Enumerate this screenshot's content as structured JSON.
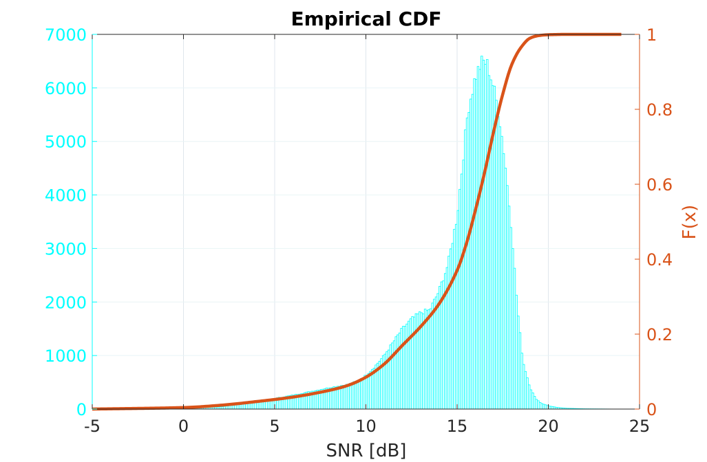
{
  "chart_data": {
    "type": "bar",
    "title": "Empirical CDF",
    "xlabel": "SNR [dB]",
    "ylabel": "",
    "y2label": "F(x)",
    "xlim": [
      -5,
      25
    ],
    "ylim": [
      0,
      7000
    ],
    "y2lim": [
      0,
      1
    ],
    "xticks": [
      "-5",
      "0",
      "5",
      "10",
      "15",
      "20",
      "25"
    ],
    "yticks": [
      "0",
      "1000",
      "2000",
      "3000",
      "4000",
      "5000",
      "6000",
      "7000"
    ],
    "y2ticks": [
      "0",
      "0.2",
      "0.4",
      "0.6",
      "0.8",
      "1"
    ],
    "grid": true,
    "colors": {
      "histogram": "#00FFFF",
      "cdf": "#D95319",
      "left_axis": "#00FFFF",
      "right_axis": "#D95319",
      "grid": "#DFE6EC"
    },
    "series": [
      {
        "type": "histogram",
        "bin_width": 0.1,
        "profile_x": [
          -5,
          -1,
          0,
          2,
          3,
          4,
          5,
          6,
          7,
          8,
          9,
          9.5,
          10,
          10.5,
          11,
          11.5,
          12,
          12.5,
          13,
          13.5,
          14,
          14.5,
          15,
          15.3,
          15.6,
          16,
          16.3,
          16.5,
          16.7,
          17,
          17.3,
          17.6,
          18,
          18.3,
          18.6,
          19,
          19.3,
          19.6,
          20,
          20.5,
          21,
          22,
          24
        ],
        "profile_y": [
          0,
          5,
          10,
          40,
          80,
          130,
          200,
          260,
          330,
          400,
          460,
          520,
          630,
          800,
          1000,
          1250,
          1500,
          1680,
          1800,
          1850,
          2200,
          2700,
          3600,
          4600,
          5600,
          6200,
          6450,
          6500,
          6400,
          6000,
          5500,
          4700,
          3300,
          1900,
          900,
          400,
          200,
          110,
          60,
          30,
          15,
          5,
          0
        ]
      },
      {
        "name": "F(x)",
        "type": "line",
        "x": [
          -5,
          0,
          2,
          4,
          6,
          8,
          9,
          10,
          11,
          12,
          13,
          14,
          15,
          15.5,
          16,
          16.5,
          17,
          17.5,
          18,
          18.5,
          19,
          19.5,
          20,
          21,
          24
        ],
        "y": [
          0.0,
          0.004,
          0.01,
          0.02,
          0.032,
          0.05,
          0.063,
          0.085,
          0.12,
          0.17,
          0.22,
          0.28,
          0.37,
          0.44,
          0.53,
          0.63,
          0.74,
          0.84,
          0.92,
          0.965,
          0.99,
          0.997,
          0.999,
          1.0,
          1.0
        ]
      }
    ]
  }
}
